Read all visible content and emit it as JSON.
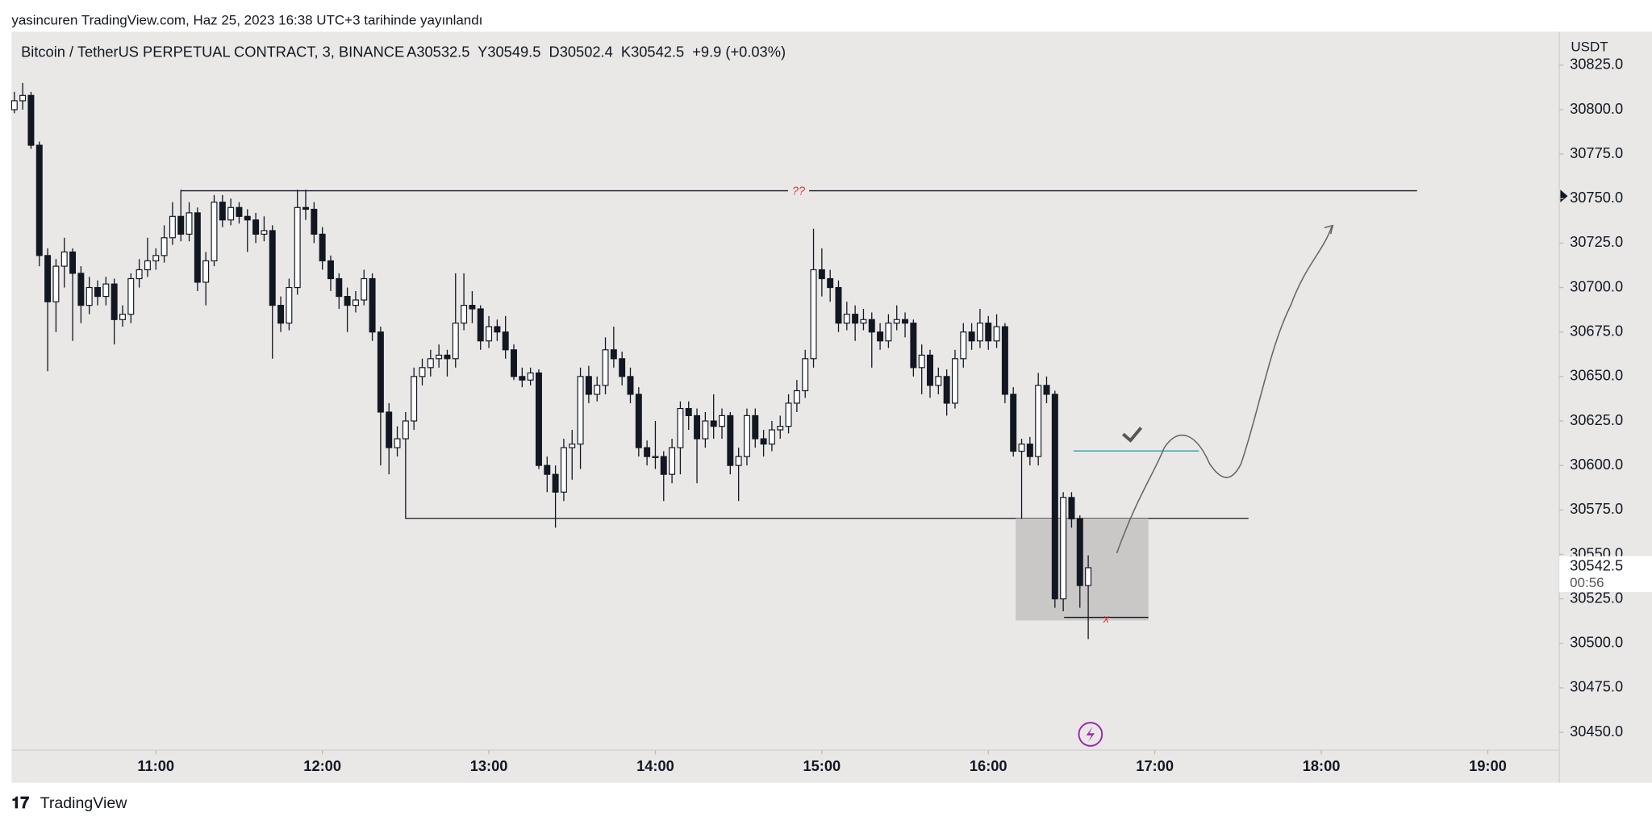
{
  "header": {
    "publisher": "yasincuren TradingView.com, Haz 25, 2023 16:38 UTC+3 tarihinde yayınlandı",
    "brand": "TradingView"
  },
  "chart_data": {
    "type": "candlestick",
    "title": "Bitcoin / TetherUS PERPETUAL CONTRACT, 3, BINANCE",
    "legend_values": "A30532.5  Y30549.5  D30502.4  K30542.5  +9.9 (+0.03%)",
    "currency": "USDT",
    "current_price": 30542.5,
    "countdown": "00:56",
    "annotations": {
      "question": "??",
      "stop": "x"
    },
    "x": [
      609,
      612,
      615,
      618,
      621,
      624,
      627,
      630,
      633,
      636,
      639,
      642,
      645,
      648,
      651,
      654,
      657,
      660,
      663,
      666,
      669,
      672,
      675,
      678,
      681,
      684,
      687,
      690,
      693,
      696,
      699,
      702,
      705,
      708,
      711,
      714,
      717,
      720,
      723,
      726,
      729,
      732,
      735,
      738,
      741,
      744,
      747,
      750,
      753,
      756,
      759,
      762,
      765,
      768,
      771,
      774,
      777,
      780,
      783,
      786,
      789,
      792,
      795,
      798,
      801,
      804,
      807,
      810,
      813,
      816,
      819,
      822,
      825,
      828,
      831,
      834,
      837,
      840,
      843,
      846,
      849,
      852,
      855,
      858,
      861,
      864,
      867,
      870,
      873,
      876,
      879,
      882,
      885,
      888,
      891,
      894,
      897,
      900,
      903,
      906,
      909,
      912,
      915,
      918,
      921,
      924,
      927,
      930,
      933,
      936,
      939,
      942,
      945,
      948,
      951,
      954,
      957,
      960,
      963,
      966,
      969,
      972,
      975,
      978,
      981,
      984,
      987,
      990,
      993,
      996
    ],
    "ohlc": [
      [
        30800,
        30810,
        30798,
        30805
      ],
      [
        30805,
        30815,
        30800,
        30808
      ],
      [
        30808,
        30810,
        30778,
        30780
      ],
      [
        30780,
        30782,
        30712,
        30718
      ],
      [
        30718,
        30722,
        30653,
        30692
      ],
      [
        30692,
        30716,
        30675,
        30712
      ],
      [
        30712,
        30728,
        30700,
        30720
      ],
      [
        30720,
        30722,
        30670,
        30708
      ],
      [
        30708,
        30712,
        30680,
        30690
      ],
      [
        30690,
        30706,
        30685,
        30700
      ],
      [
        30700,
        30704,
        30690,
        30695
      ],
      [
        30695,
        30706,
        30690,
        30702
      ],
      [
        30702,
        30705,
        30668,
        30682
      ],
      [
        30682,
        30690,
        30678,
        30685
      ],
      [
        30685,
        30708,
        30680,
        30705
      ],
      [
        30705,
        30716,
        30700,
        30710
      ],
      [
        30710,
        30728,
        30706,
        30715
      ],
      [
        30715,
        30722,
        30710,
        30718
      ],
      [
        30718,
        30735,
        30714,
        30728
      ],
      [
        30728,
        30748,
        30724,
        30740
      ],
      [
        30740,
        30755,
        30726,
        30730
      ],
      [
        30730,
        30748,
        30726,
        30742
      ],
      [
        30742,
        30745,
        30698,
        30703
      ],
      [
        30703,
        30720,
        30690,
        30715
      ],
      [
        30715,
        30752,
        30712,
        30748
      ],
      [
        30748,
        30752,
        30734,
        30738
      ],
      [
        30738,
        30750,
        30735,
        30745
      ],
      [
        30745,
        30748,
        30736,
        30740
      ],
      [
        30740,
        30744,
        30720,
        30738
      ],
      [
        30738,
        30742,
        30725,
        30730
      ],
      [
        30730,
        30740,
        30726,
        30732
      ],
      [
        30732,
        30735,
        30660,
        30690
      ],
      [
        30690,
        30695,
        30675,
        30680
      ],
      [
        30680,
        30705,
        30676,
        30700
      ],
      [
        30700,
        30755,
        30696,
        30745
      ],
      [
        30745,
        30755,
        30738,
        30744
      ],
      [
        30744,
        30748,
        30725,
        30730
      ],
      [
        30730,
        30734,
        30710,
        30715
      ],
      [
        30715,
        30718,
        30698,
        30705
      ],
      [
        30705,
        30708,
        30688,
        30695
      ],
      [
        30695,
        30700,
        30675,
        30690
      ],
      [
        30690,
        30698,
        30686,
        30693
      ],
      [
        30693,
        30710,
        30690,
        30705
      ],
      [
        30705,
        30708,
        30670,
        30675
      ],
      [
        30675,
        30678,
        30600,
        30630
      ],
      [
        30630,
        30635,
        30595,
        30610
      ],
      [
        30610,
        30622,
        30605,
        30615
      ],
      [
        30615,
        30630,
        30570,
        30625
      ],
      [
        30625,
        30655,
        30620,
        30650
      ],
      [
        30650,
        30660,
        30645,
        30655
      ],
      [
        30655,
        30665,
        30650,
        30660
      ],
      [
        30660,
        30668,
        30655,
        30662
      ],
      [
        30662,
        30665,
        30650,
        30660
      ],
      [
        30660,
        30708,
        30655,
        30680
      ],
      [
        30680,
        30708,
        30676,
        30690
      ],
      [
        30690,
        30698,
        30680,
        30688
      ],
      [
        30688,
        30690,
        30665,
        30670
      ],
      [
        30670,
        30684,
        30666,
        30678
      ],
      [
        30678,
        30682,
        30670,
        30675
      ],
      [
        30675,
        30684,
        30660,
        30665
      ],
      [
        30665,
        30668,
        30648,
        30650
      ],
      [
        30650,
        30655,
        30644,
        30648
      ],
      [
        30648,
        30655,
        30645,
        30652
      ],
      [
        30652,
        30654,
        30598,
        30600
      ],
      [
        30600,
        30605,
        30585,
        30595
      ],
      [
        30595,
        30600,
        30565,
        30585
      ],
      [
        30585,
        30615,
        30580,
        30610
      ],
      [
        30610,
        30620,
        30592,
        30612
      ],
      [
        30612,
        30655,
        30598,
        30650
      ],
      [
        30650,
        30656,
        30635,
        30640
      ],
      [
        30640,
        30650,
        30636,
        30645
      ],
      [
        30645,
        30672,
        30640,
        30665
      ],
      [
        30665,
        30678,
        30655,
        30660
      ],
      [
        30660,
        30664,
        30645,
        30650
      ],
      [
        30650,
        30655,
        30635,
        30640
      ],
      [
        30640,
        30644,
        30605,
        30610
      ],
      [
        30610,
        30614,
        30600,
        30605
      ],
      [
        30605,
        30625,
        30598,
        30605
      ],
      [
        30605,
        30608,
        30580,
        30595
      ],
      [
        30595,
        30615,
        30590,
        30610
      ],
      [
        30610,
        30636,
        30595,
        30632
      ],
      [
        30632,
        30636,
        30620,
        30628
      ],
      [
        30628,
        30632,
        30590,
        30615
      ],
      [
        30615,
        30630,
        30610,
        30625
      ],
      [
        30625,
        30640,
        30615,
        30622
      ],
      [
        30622,
        30632,
        30615,
        30628
      ],
      [
        30628,
        30630,
        30595,
        30600
      ],
      [
        30600,
        30610,
        30580,
        30605
      ],
      [
        30605,
        30632,
        30600,
        30628
      ],
      [
        30628,
        30632,
        30610,
        30615
      ],
      [
        30615,
        30620,
        30605,
        30612
      ],
      [
        30612,
        30625,
        30608,
        30620
      ],
      [
        30620,
        30628,
        30615,
        30622
      ],
      [
        30622,
        30640,
        30618,
        30635
      ],
      [
        30635,
        30648,
        30630,
        30642
      ],
      [
        30642,
        30665,
        30638,
        30660
      ],
      [
        30660,
        30733,
        30655,
        30710
      ],
      [
        30710,
        30722,
        30695,
        30705
      ],
      [
        30705,
        30710,
        30692,
        30700
      ],
      [
        30700,
        30704,
        30675,
        30680
      ],
      [
        30680,
        30692,
        30676,
        30685
      ],
      [
        30685,
        30690,
        30670,
        30680
      ],
      [
        30680,
        30688,
        30676,
        30682
      ],
      [
        30682,
        30686,
        30655,
        30675
      ],
      [
        30675,
        30680,
        30665,
        30670
      ],
      [
        30670,
        30685,
        30666,
        30680
      ],
      [
        30680,
        30690,
        30676,
        30682
      ],
      [
        30682,
        30686,
        30672,
        30680
      ],
      [
        30680,
        30682,
        30650,
        30655
      ],
      [
        30655,
        30668,
        30640,
        30662
      ],
      [
        30662,
        30665,
        30638,
        30645
      ],
      [
        30645,
        30655,
        30640,
        30650
      ],
      [
        30650,
        30654,
        30628,
        30635
      ],
      [
        30635,
        30665,
        30632,
        30660
      ],
      [
        30660,
        30680,
        30655,
        30675
      ],
      [
        30675,
        30680,
        30665,
        30670
      ],
      [
        30670,
        30688,
        30666,
        30680
      ],
      [
        30680,
        30684,
        30665,
        30670
      ],
      [
        30670,
        30685,
        30666,
        30678
      ],
      [
        30678,
        30680,
        30635,
        30640
      ],
      [
        30640,
        30644,
        30605,
        30608
      ],
      [
        30608,
        30615,
        30570,
        30612
      ],
      [
        30612,
        30616,
        30600,
        30605
      ],
      [
        30605,
        30652,
        30600,
        30645
      ],
      [
        30645,
        30650,
        30635,
        30640
      ],
      [
        30640,
        30642,
        30520,
        30525
      ],
      [
        30525,
        30585,
        30518,
        30582
      ],
      [
        30582,
        30585,
        30565,
        30570
      ],
      [
        30570,
        30572,
        30520,
        30532.5
      ],
      [
        30532.5,
        30549.5,
        30502.4,
        30542.5
      ]
    ],
    "up_color": "#ffffff",
    "down_color": "#131722",
    "xlim": [
      608,
      1165
    ],
    "xticks": [
      {
        "value": 660,
        "label": "11:00"
      },
      {
        "value": 720,
        "label": "12:00"
      },
      {
        "value": 780,
        "label": "13:00"
      },
      {
        "value": 840,
        "label": "14:00"
      },
      {
        "value": 900,
        "label": "15:00"
      },
      {
        "value": 960,
        "label": "16:00"
      },
      {
        "value": 1020,
        "label": "17:00"
      },
      {
        "value": 1080,
        "label": "18:00"
      },
      {
        "value": 1140,
        "label": "19:00"
      }
    ],
    "ylim": [
      30440,
      30843.8
    ],
    "yticks": [
      {
        "value": 30450,
        "label": "30450.0"
      },
      {
        "value": 30475,
        "label": "30475.0"
      },
      {
        "value": 30500,
        "label": "30500.0"
      },
      {
        "value": 30525,
        "label": "30525.0"
      },
      {
        "value": 30550,
        "label": "30550.0"
      },
      {
        "value": 30575,
        "label": "30575.0"
      },
      {
        "value": 30600,
        "label": "30600.0"
      },
      {
        "value": 30625,
        "label": "30625.0"
      },
      {
        "value": 30650,
        "label": "30650.0"
      },
      {
        "value": 30675,
        "label": "30675.0"
      },
      {
        "value": 30700,
        "label": "30700.0"
      },
      {
        "value": 30725,
        "label": "30725.0"
      },
      {
        "value": 30750,
        "label": "30750.0"
      },
      {
        "value": 30775,
        "label": "30775.0"
      },
      {
        "value": 30800,
        "label": "30800.0"
      },
      {
        "value": 30825,
        "label": "30825.0"
      }
    ]
  }
}
